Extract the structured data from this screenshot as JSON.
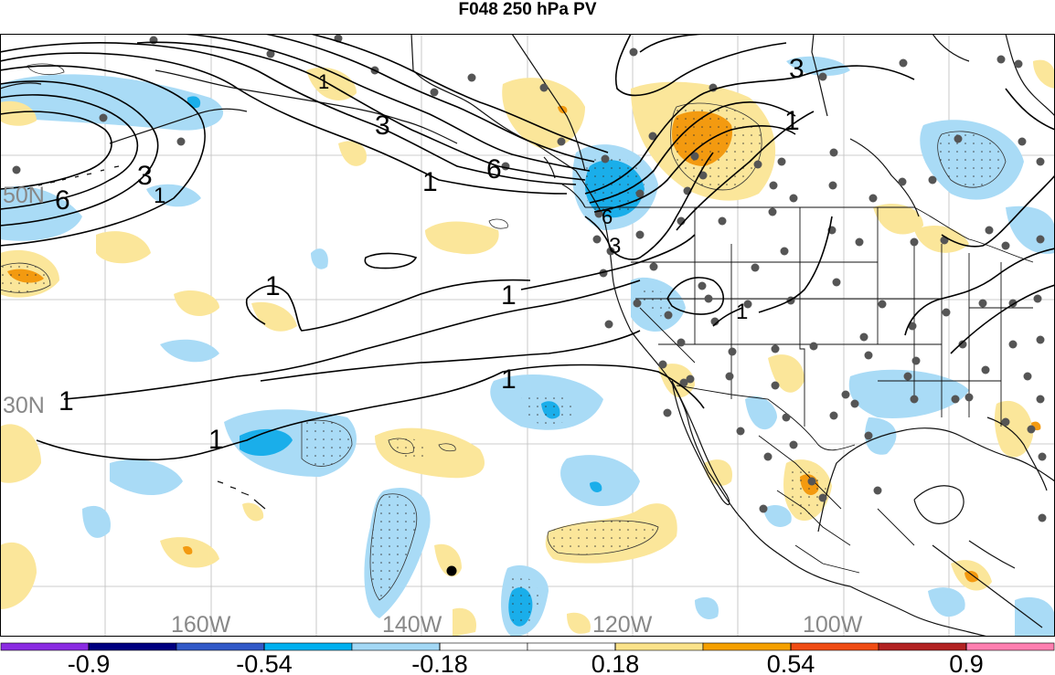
{
  "title": "F048 250 hPa PV",
  "lat_labels": [
    "50N",
    "30N"
  ],
  "lon_labels": [
    "160W",
    "140W",
    "120W",
    "100W"
  ],
  "contour_labels": [
    "6",
    "3",
    "1",
    "3",
    "1",
    "6",
    "1",
    "3",
    "1",
    "1",
    "1",
    "1",
    "1",
    "3",
    "6",
    "1",
    "1"
  ],
  "colorbar": {
    "colors": [
      "#8a2be2",
      "#000080",
      "#3159c8",
      "#00b0f0",
      "#a3d8f5",
      "#ffffff",
      "#ffffff",
      "#fbe38a",
      "#f5a000",
      "#f04c14",
      "#b22222",
      "#ff7fb0"
    ],
    "tick_labels": [
      "-0.9",
      "-0.54",
      "-0.18",
      "0.18",
      "0.54",
      "0.9"
    ]
  },
  "colors": {
    "light_blue": "#a9dbf6",
    "mid_blue": "#1aaeea",
    "light_yellow": "#fbe69a",
    "orange": "#f39a10",
    "dark_orange": "#e9620f",
    "station": "#555555"
  }
}
